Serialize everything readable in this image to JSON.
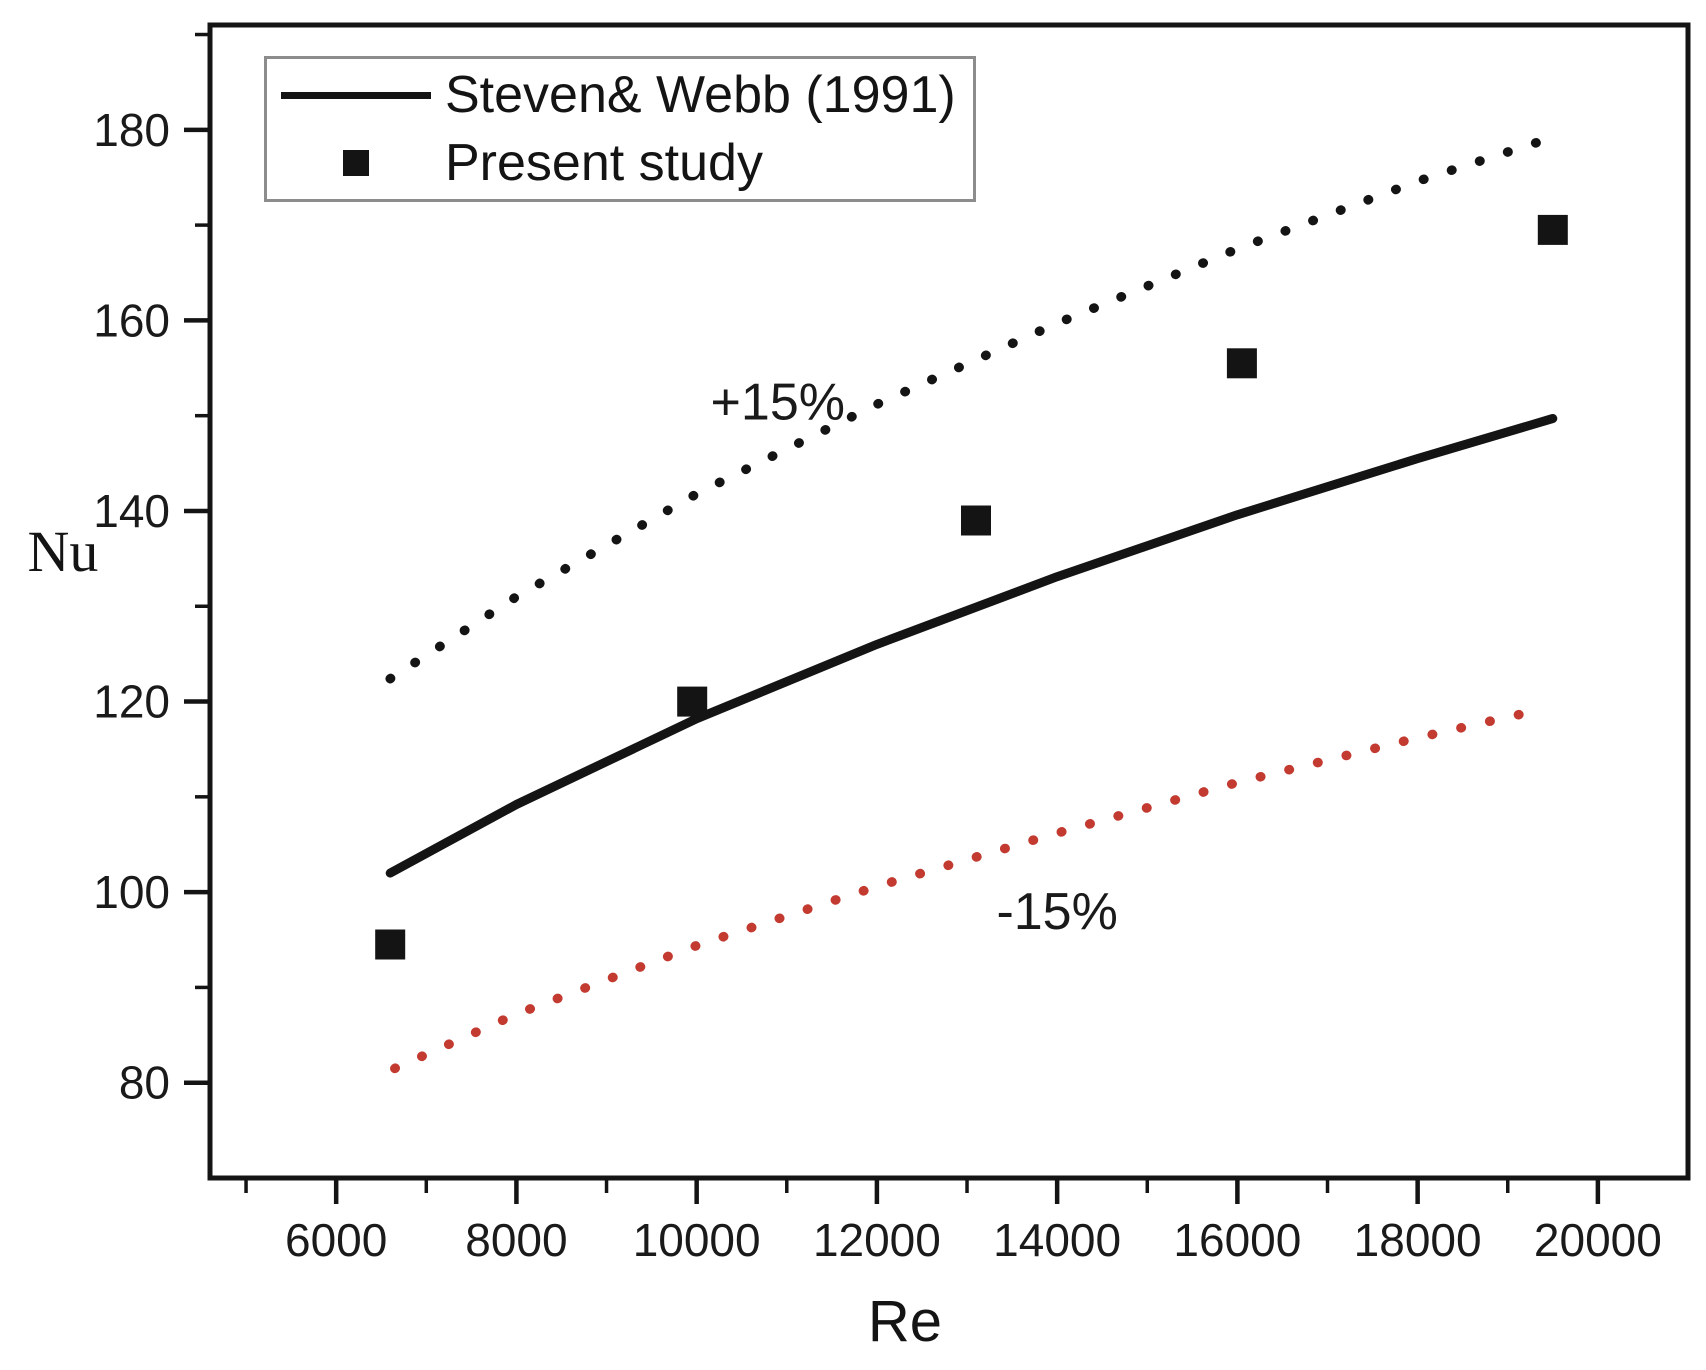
{
  "figure_title": "",
  "legend": {
    "items": [
      {
        "label": "Steven& Webb (1991)",
        "marker": "line"
      },
      {
        "label": "Present study",
        "marker": "square"
      }
    ]
  },
  "colors": {
    "line_black": "#141414",
    "band_red": "#c23a30",
    "text": "#1a1a1a",
    "legend_border": "#8c8c8c"
  },
  "chart_data": {
    "type": "scatter",
    "title": "",
    "xlabel": "Re",
    "ylabel": "Nu",
    "xlim": [
      4600,
      21000
    ],
    "ylim": [
      70,
      191
    ],
    "x_ticks": [
      6000,
      8000,
      10000,
      12000,
      14000,
      16000,
      18000,
      20000
    ],
    "y_ticks": [
      80,
      100,
      120,
      140,
      160,
      180
    ],
    "x_minor_step": 1000,
    "y_minor_step": 10,
    "grid": false,
    "legend_position": "top-left",
    "series": [
      {
        "name": "Steven& Webb (1991)",
        "type": "line",
        "style": "solid",
        "color": "#141414",
        "x": [
          6600,
          8000,
          10000,
          12000,
          14000,
          16000,
          18000,
          19500
        ],
        "y": [
          102,
          109.2,
          118.2,
          126.0,
          133.1,
          139.6,
          145.5,
          149.7
        ]
      },
      {
        "name": "+15% band",
        "type": "line",
        "style": "dotted",
        "color": "#141414",
        "x": [
          6600,
          8000,
          10000,
          12000,
          14000,
          16000,
          18000,
          19400
        ],
        "y": [
          122.4,
          131.0,
          141.8,
          151.2,
          159.7,
          167.5,
          174.6,
          178.9
        ]
      },
      {
        "name": "-15% band",
        "type": "line",
        "style": "dotted",
        "color": "#c23a30",
        "x": [
          6650,
          8000,
          10000,
          12000,
          14000,
          16000,
          18000,
          19250
        ],
        "y": [
          81.5,
          87.2,
          94.4,
          100.6,
          106.2,
          111.5,
          116.2,
          118.9
        ]
      },
      {
        "name": "Present study",
        "type": "scatter",
        "marker": "square",
        "color": "#141414",
        "x": [
          6600,
          9950,
          13100,
          16050,
          19500
        ],
        "y": [
          94.5,
          120.0,
          139.0,
          155.5,
          169.5
        ]
      }
    ],
    "annotations": [
      {
        "text": "+15%",
        "x": 10900,
        "y": 151.5,
        "color": "#1a1a1a"
      },
      {
        "text": "-15%",
        "x": 14000,
        "y": 98.0,
        "color": "#1a1a1a"
      }
    ]
  }
}
